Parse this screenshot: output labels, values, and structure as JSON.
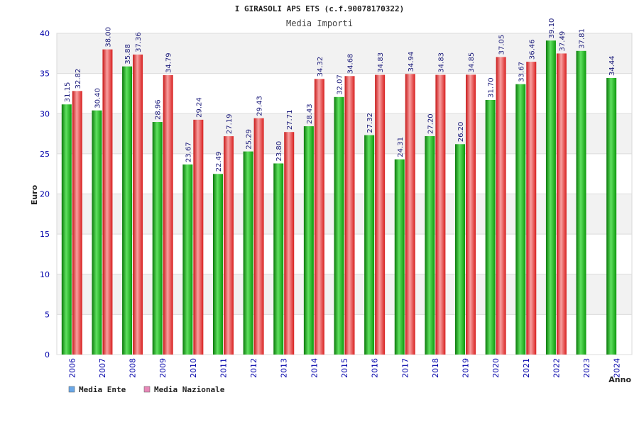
{
  "chart_data": {
    "type": "bar",
    "title": "I GIRASOLI APS ETS (c.f.90078170322)",
    "subtitle": "Media Importi",
    "xlabel": "Anno",
    "ylabel": "Euro",
    "ylim": [
      0,
      40
    ],
    "yticks": [
      "0",
      "5",
      "10",
      "15",
      "20",
      "25",
      "30",
      "35",
      "40"
    ],
    "grid": true,
    "legend_position": "bottom-left",
    "categories": [
      "2006",
      "2007",
      "2008",
      "2009",
      "2010",
      "2011",
      "2012",
      "2013",
      "2014",
      "2015",
      "2016",
      "2017",
      "2018",
      "2019",
      "2020",
      "2021",
      "2022",
      "2023",
      "2024"
    ],
    "series": [
      {
        "name": "Media Ente",
        "color": "#10b010",
        "values": [
          31.15,
          30.4,
          35.88,
          28.96,
          23.67,
          22.49,
          25.29,
          23.8,
          28.43,
          32.07,
          27.32,
          24.31,
          27.2,
          26.2,
          31.7,
          33.67,
          39.1,
          37.81,
          34.44
        ],
        "labels": [
          "31.15",
          "30.40",
          "35.88",
          "28.96",
          "23.67",
          "22.49",
          "25.29",
          "23.80",
          "28.43",
          "32.07",
          "27.32",
          "24.31",
          "27.20",
          "26.20",
          "31.70",
          "33.67",
          "39.10",
          "37.81",
          "34.44"
        ]
      },
      {
        "name": "Media Nazionale",
        "color": "#e02828",
        "values": [
          32.82,
          38.0,
          37.36,
          34.79,
          29.24,
          27.19,
          29.43,
          27.71,
          34.32,
          34.68,
          34.83,
          34.94,
          34.83,
          34.85,
          37.05,
          36.46,
          37.49,
          null,
          null
        ],
        "labels": [
          "32.82",
          "38.00",
          "37.36",
          "34.79",
          "29.24",
          "27.19",
          "29.43",
          "27.71",
          "34.32",
          "34.68",
          "34.83",
          "34.94",
          "34.83",
          "34.85",
          "37.05",
          "36.46",
          "37.49",
          "",
          ""
        ]
      }
    ],
    "legend": [
      {
        "label": "Media Ente",
        "color": "#6aa8e8"
      },
      {
        "label": "Media Nazionale",
        "color": "#e888b8"
      }
    ]
  }
}
